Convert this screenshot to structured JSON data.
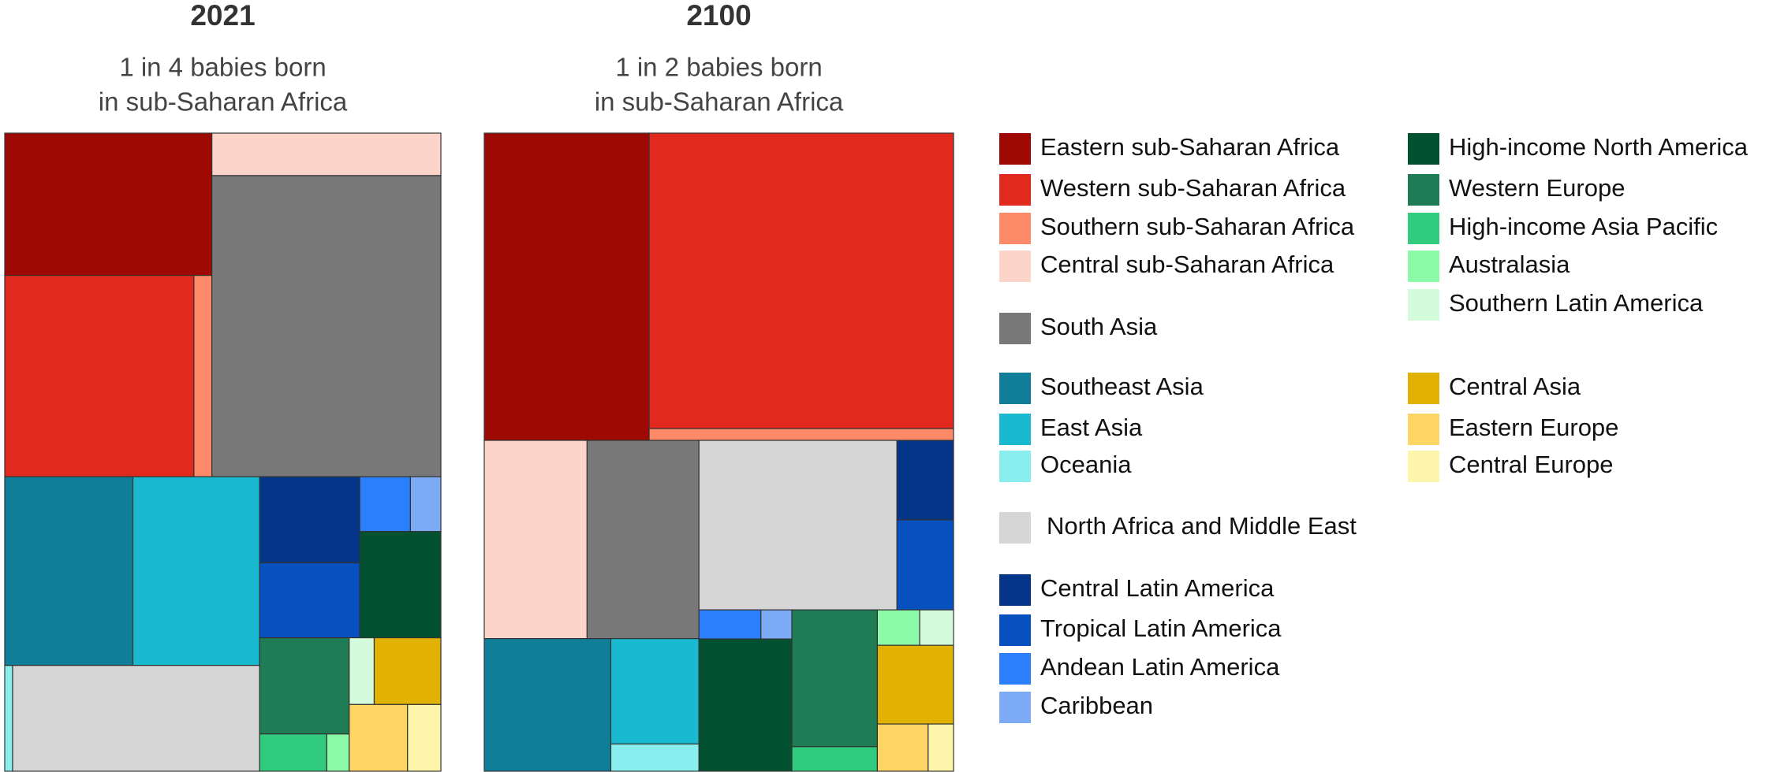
{
  "chart_data": [
    {
      "type": "treemap",
      "title": "2021",
      "subtitle": [
        "1 in 4 babies born",
        "in sub-Saharan Africa"
      ],
      "values": [
        10.6,
        13.7,
        1.3,
        3.5,
        24.8,
        8.7,
        8.6,
        0.3,
        9.4,
        3.1,
        2.7,
        1.0,
        0.6,
        3.1,
        3.1,
        0.9,
        0.3,
        0.6,
        1.6,
        1.4,
        0.8
      ]
    },
    {
      "type": "treemap",
      "title": "2100",
      "subtitle": [
        "1 in 2 babies born",
        "in sub-Saharan Africa"
      ],
      "values": [
        16.9,
        30.0,
        1.2,
        6.8,
        7.4,
        5.6,
        3.1,
        0.8,
        11.2,
        1.5,
        1.7,
        0.6,
        0.3,
        4.1,
        3.9,
        0.7,
        0.5,
        0.4,
        2.0,
        0.8,
        0.4
      ]
    }
  ],
  "legend": {
    "items": [
      {
        "name": "Eastern sub-Saharan Africa",
        "color": "#9e0a03"
      },
      {
        "name": "Western sub-Saharan Africa",
        "color": "#e2291d"
      },
      {
        "name": "Southern sub-Saharan Africa",
        "color": "#fc8a68"
      },
      {
        "name": "Central sub-Saharan Africa",
        "color": "#fdd4ca"
      },
      {
        "name": "South Asia",
        "color": "#787878"
      },
      {
        "name": "Southeast Asia",
        "color": "#117e99"
      },
      {
        "name": "East Asia",
        "color": "#19b9cf"
      },
      {
        "name": "Oceania",
        "color": "#8beeee"
      },
      {
        "name": "North Africa and Middle East",
        "color": "#d6d6d6"
      },
      {
        "name": "Central Latin America",
        "color": "#043589"
      },
      {
        "name": "Tropical Latin America",
        "color": "#0750c0"
      },
      {
        "name": "Andean Latin America",
        "color": "#2b7ffd"
      },
      {
        "name": "Caribbean",
        "color": "#7eabf6"
      },
      {
        "name": "High-income North America",
        "color": "#025231"
      },
      {
        "name": "Western Europe",
        "color": "#1f7c54"
      },
      {
        "name": "High-income Asia Pacific",
        "color": "#31cb7e"
      },
      {
        "name": "Australasia",
        "color": "#8bfaa8"
      },
      {
        "name": "Southern Latin America",
        "color": "#d4fcdc"
      },
      {
        "name": "Central Asia",
        "color": "#e2b202"
      },
      {
        "name": "Eastern Europe",
        "color": "#fcd565"
      },
      {
        "name": "Central Europe",
        "color": "#fdf5a9"
      }
    ]
  }
}
